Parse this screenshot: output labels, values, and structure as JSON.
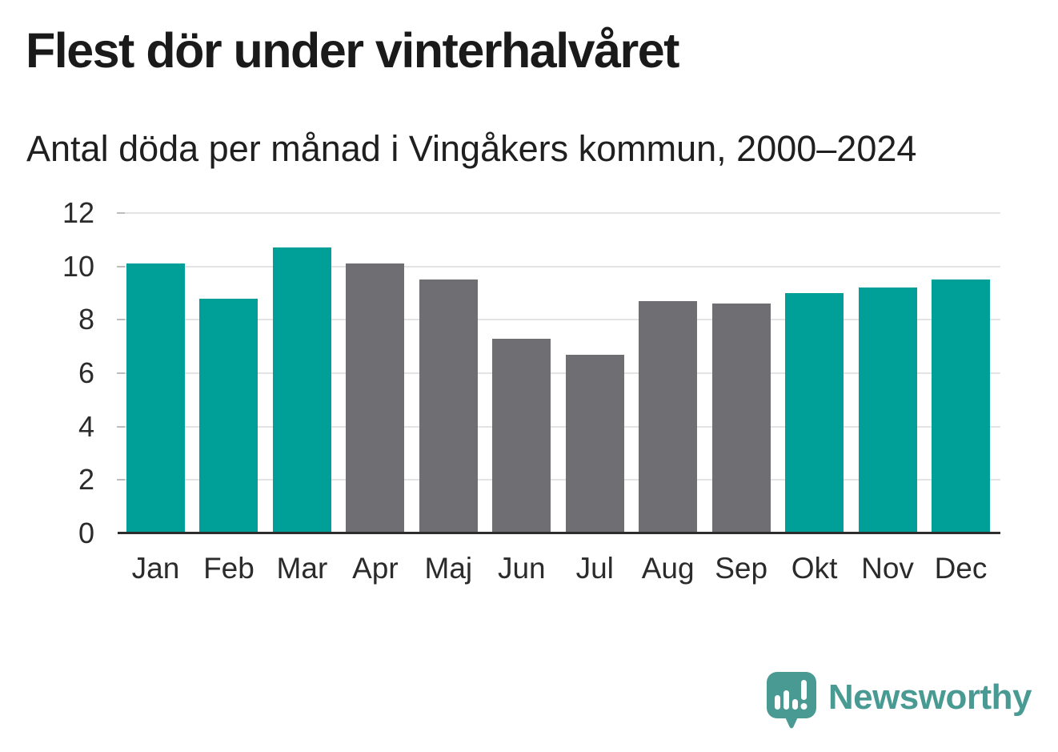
{
  "title": "Flest dör under vinterhalvåret",
  "subtitle": "Antal döda per månad i Vingåkers kommun, 2000–2024",
  "chart_data": {
    "type": "bar",
    "title": "Flest dör under vinterhalvåret",
    "subtitle": "Antal döda per månad i Vingåkers kommun, 2000–2024",
    "categories": [
      "Jan",
      "Feb",
      "Mar",
      "Apr",
      "Maj",
      "Jun",
      "Jul",
      "Aug",
      "Sep",
      "Okt",
      "Nov",
      "Dec"
    ],
    "values": [
      10.1,
      8.8,
      10.7,
      10.1,
      9.5,
      7.3,
      6.7,
      8.7,
      8.6,
      9.0,
      9.2,
      9.5
    ],
    "bar_roles": [
      "highlight",
      "highlight",
      "highlight",
      "muted",
      "muted",
      "muted",
      "muted",
      "muted",
      "muted",
      "highlight",
      "highlight",
      "highlight"
    ],
    "colors": {
      "highlight": "#00a099",
      "muted": "#6e6e73"
    },
    "xlabel": "",
    "ylabel": "",
    "ylim": [
      0,
      12
    ],
    "yticks": [
      0,
      2,
      4,
      6,
      8,
      10,
      12
    ],
    "grid": true,
    "legend": false
  },
  "footer": {
    "brand": "Newsworthy",
    "logo_icon": "newsworthy-speech-bubble-bar-chart-icon",
    "brand_color": "#4a9a94"
  }
}
